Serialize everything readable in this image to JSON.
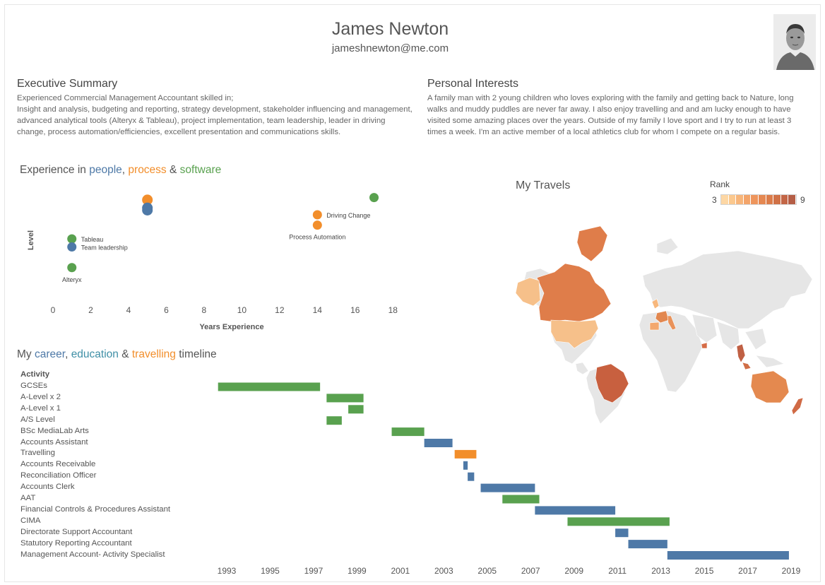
{
  "header": {
    "name": "James Newton",
    "email": "jameshnewton@me.com",
    "photo_icon": "profile-photo"
  },
  "executive_summary": {
    "title": "Executive Summary",
    "text": "Experienced Commercial Management Accountant skilled in;\nInsight and analysis, budgeting and reporting, strategy development, stakeholder influencing and management, advanced analytical tools (Alteryx & Tableau), project implementation, team leadership, leader in driving change, process automation/efficiencies, excellent presentation and communications skills."
  },
  "personal_interests": {
    "title": "Personal Interests",
    "text": "A family man with 2 young children who loves exploring with the family and getting back to Nature, long walks and muddy puddles are never far away. I also enjoy travelling and  and am lucky enough to have visited some amazing places over the years. Outside of my family I love sport and I try to run at least 3 times a week. I'm an active member of a local athletics club for whom I compete on a regular basis."
  },
  "colors": {
    "people": "#4e79a7",
    "process": "#f28e2b",
    "software": "#59a14f"
  },
  "experience": {
    "title_parts": [
      "Experience in ",
      "people",
      ", ",
      "process",
      " & ",
      "software"
    ]
  },
  "timeline": {
    "title_parts": [
      "My ",
      "career",
      ", ",
      "education",
      " & ",
      "travelling",
      " timeline"
    ],
    "header": "Activity"
  },
  "travels": {
    "title": "My Travels",
    "legend_title": "Rank",
    "legend_min": "3",
    "legend_max": "9",
    "legend_colors": [
      "#fdd7a4",
      "#fbc88e",
      "#f7b57a",
      "#f3a46a",
      "#ee955c",
      "#e58852",
      "#db7c4a",
      "#d07146",
      "#c36646",
      "#b55e46"
    ]
  },
  "chart_data": [
    {
      "type": "scatter",
      "title": "Experience in people, process & software",
      "xlabel": "Years Experience",
      "ylabel": "Level",
      "xlim": [
        0,
        19
      ],
      "x_ticks": [
        "0",
        "2",
        "4",
        "6",
        "8",
        "10",
        "12",
        "14",
        "16",
        "18"
      ],
      "points": [
        {
          "label": "",
          "x": 5,
          "y": 8.9,
          "category": "process"
        },
        {
          "label": "",
          "x": 5,
          "y": 8.2,
          "category": "people"
        },
        {
          "label": "",
          "x": 5,
          "y": 8.0,
          "category": "people"
        },
        {
          "label": "",
          "x": 17,
          "y": 9.1,
          "category": "software"
        },
        {
          "label": "Driving Change",
          "x": 14,
          "y": 7.6,
          "category": "process"
        },
        {
          "label": "Process Automation",
          "x": 14,
          "y": 6.7,
          "category": "process"
        },
        {
          "label": "Tableau",
          "x": 1,
          "y": 5.5,
          "category": "software"
        },
        {
          "label": "Team leadership",
          "x": 1,
          "y": 4.8,
          "category": "people"
        },
        {
          "label": "Alteryx",
          "x": 1,
          "y": 3.0,
          "category": "software"
        }
      ]
    },
    {
      "type": "bar",
      "orientation": "horizontal-gantt",
      "title": "My career, education & travelling timeline",
      "xlim": [
        1992.5,
        2019.5
      ],
      "x_ticks": [
        "1993",
        "1995",
        "1997",
        "1999",
        "2001",
        "2003",
        "2005",
        "2007",
        "2009",
        "2011",
        "2013",
        "2015",
        "2017",
        "2019"
      ],
      "activities": [
        {
          "label": "GCSEs",
          "start": 1992.6,
          "end": 1997.3,
          "category": "education"
        },
        {
          "label": "A-Level x 2",
          "start": 1997.6,
          "end": 1999.3,
          "category": "education"
        },
        {
          "label": "A-Level x 1",
          "start": 1998.6,
          "end": 1999.3,
          "category": "education"
        },
        {
          "label": "A/S Level",
          "start": 1997.6,
          "end": 1998.3,
          "category": "education"
        },
        {
          "label": "BSc MediaLab Arts",
          "start": 2000.6,
          "end": 2002.1,
          "category": "education"
        },
        {
          "label": "Accounts Assistant",
          "start": 2002.1,
          "end": 2003.4,
          "category": "career"
        },
        {
          "label": "Travelling",
          "start": 2003.5,
          "end": 2004.5,
          "category": "travelling"
        },
        {
          "label": "Accounts Receivable",
          "start": 2003.9,
          "end": 2004.1,
          "category": "career"
        },
        {
          "label": "Reconciliation Officer",
          "start": 2004.1,
          "end": 2004.4,
          "category": "career"
        },
        {
          "label": "Accounts Clerk",
          "start": 2004.7,
          "end": 2007.2,
          "category": "career"
        },
        {
          "label": "AAT",
          "start": 2005.7,
          "end": 2007.4,
          "category": "education"
        },
        {
          "label": "Financial Controls & Procedures Assistant",
          "start": 2007.2,
          "end": 2010.9,
          "category": "career"
        },
        {
          "label": "CIMA",
          "start": 2008.7,
          "end": 2013.4,
          "category": "education"
        },
        {
          "label": "Directorate Support Accountant",
          "start": 2010.9,
          "end": 2011.5,
          "category": "career"
        },
        {
          "label": "Statutory Reporting Accountant",
          "start": 2011.5,
          "end": 2013.3,
          "category": "career"
        },
        {
          "label": "Management Account- Activity Specialist",
          "start": 2013.3,
          "end": 2018.9,
          "category": "career"
        }
      ]
    },
    {
      "type": "map",
      "title": "My Travels",
      "legend": {
        "title": "Rank",
        "min": 3,
        "max": 9
      },
      "regions": [
        {
          "name": "Canada",
          "rank": 7
        },
        {
          "name": "Greenland",
          "rank": 7
        },
        {
          "name": "United States",
          "rank": 4
        },
        {
          "name": "Alaska",
          "rank": 4
        },
        {
          "name": "Brazil",
          "rank": 9
        },
        {
          "name": "Australia",
          "rank": 7
        },
        {
          "name": "New Zealand",
          "rank": 8
        },
        {
          "name": "Thailand",
          "rank": 9
        },
        {
          "name": "Malaysia",
          "rank": 8
        },
        {
          "name": "Spain",
          "rank": 5
        },
        {
          "name": "France",
          "rank": 7
        },
        {
          "name": "Italy",
          "rank": 6
        },
        {
          "name": "United Kingdom",
          "rank": 4
        },
        {
          "name": "UAE",
          "rank": 8
        }
      ]
    }
  ]
}
